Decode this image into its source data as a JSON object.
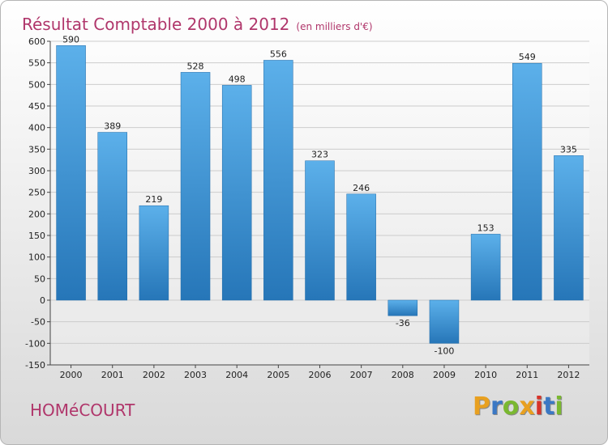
{
  "header": {
    "title": "Résultat Comptable 2000 à 2012",
    "subtitle": "(en milliers d'€)"
  },
  "footer": {
    "commune": "HOMéCOURT",
    "logo_text": "Proxiti",
    "logo_colors": [
      "#e8a020",
      "#3b78c4",
      "#7ab830",
      "#e8a020",
      "#d7342a",
      "#3b78c4",
      "#7ab830"
    ]
  },
  "chart_data": {
    "type": "bar",
    "title": "Résultat Comptable 2000 à 2012",
    "subtitle": "(en milliers d'€)",
    "xlabel": "",
    "ylabel": "",
    "categories": [
      "2000",
      "2001",
      "2002",
      "2003",
      "2004",
      "2005",
      "2006",
      "2007",
      "2008",
      "2009",
      "2010",
      "2011",
      "2012"
    ],
    "values": [
      590,
      389,
      219,
      528,
      498,
      556,
      323,
      246,
      -36,
      -100,
      153,
      549,
      335
    ],
    "value_labels": [
      "590",
      "389",
      "219",
      "528",
      "498",
      "556",
      "323",
      "246",
      "-36",
      "-100",
      "153",
      "549",
      "335"
    ],
    "ylim": [
      -150,
      600
    ],
    "yticks": [
      600,
      550,
      500,
      450,
      400,
      350,
      300,
      250,
      200,
      150,
      100,
      50,
      0,
      -50,
      -100,
      -150
    ],
    "ytick_labels": [
      "600",
      "550",
      "500",
      "450",
      "400",
      "350",
      "300",
      "250",
      "200",
      "150",
      "100",
      "50",
      "0",
      "-50",
      "-100",
      "-150"
    ],
    "grid": "horizontal",
    "legend": "none",
    "colors": {
      "bar_light": "#5cb0ea",
      "bar_dark": "#2676b8",
      "grid": "#cccccc",
      "axis": "#444444"
    }
  }
}
